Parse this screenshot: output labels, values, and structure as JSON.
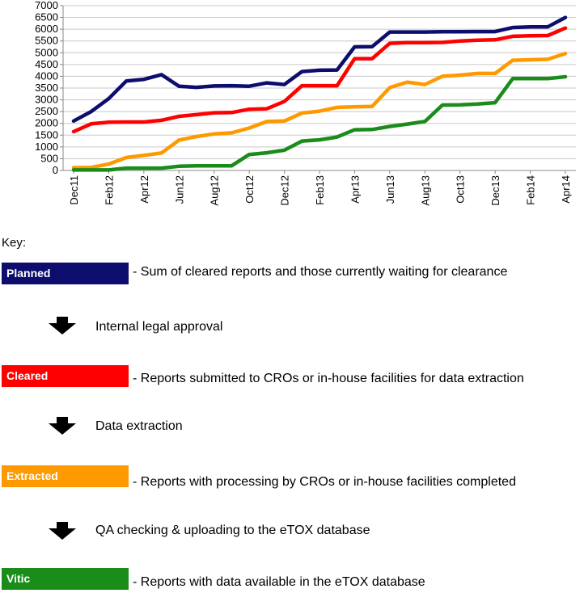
{
  "chart_data": {
    "type": "line",
    "categories": [
      "Dec11",
      "Jan12",
      "Feb12",
      "Mar12",
      "Apr12",
      "May12",
      "Jun12",
      "Jul12",
      "Aug12",
      "Sep12",
      "Oct12",
      "Nov12",
      "Dec12",
      "Jan13",
      "Feb13",
      "Mar13",
      "Apr13",
      "May13",
      "Jun13",
      "Jul13",
      "Aug13",
      "Sep13",
      "Oct13",
      "Nov13",
      "Dec13",
      "Jan14",
      "Feb14",
      "Mar14",
      "Apr14"
    ],
    "tick_labels": [
      "Dec11",
      "Feb12",
      "Apr12",
      "Jun12",
      "Aug12",
      "Oct12",
      "Dec12",
      "Feb13",
      "Apr13",
      "Jun13",
      "Aug13",
      "Oct13",
      "Dec13",
      "Feb14",
      "Apr14"
    ],
    "y_ticks": [
      0,
      500,
      1000,
      1500,
      2000,
      2500,
      3000,
      3500,
      4000,
      4500,
      5000,
      5500,
      6000,
      6500,
      7000
    ],
    "ylim": [
      0,
      7000
    ],
    "grid": true,
    "series": [
      {
        "name": "Planned",
        "color": "#0d0d6e",
        "values": [
          2100,
          2500,
          3050,
          3800,
          3870,
          4070,
          3580,
          3530,
          3590,
          3600,
          3580,
          3720,
          3650,
          4200,
          4260,
          4270,
          5250,
          5260,
          5880,
          5880,
          5880,
          5890,
          5890,
          5900,
          5900,
          6070,
          6100,
          6100,
          6500
        ]
      },
      {
        "name": "Cleared",
        "color": "#ff0000",
        "values": [
          1650,
          1980,
          2050,
          2060,
          2060,
          2130,
          2300,
          2370,
          2450,
          2460,
          2600,
          2620,
          2930,
          3600,
          3600,
          3600,
          4750,
          4750,
          5400,
          5430,
          5430,
          5440,
          5500,
          5530,
          5550,
          5700,
          5720,
          5730,
          6050
        ]
      },
      {
        "name": "Extracted",
        "color": "#ff9900",
        "values": [
          120,
          130,
          270,
          550,
          640,
          740,
          1290,
          1440,
          1550,
          1600,
          1800,
          2080,
          2100,
          2440,
          2520,
          2680,
          2700,
          2720,
          3520,
          3750,
          3650,
          4000,
          4050,
          4120,
          4120,
          4680,
          4700,
          4720,
          4970
        ]
      },
      {
        "name": "Vitic",
        "color": "#1a8c1a",
        "values": [
          20,
          20,
          20,
          100,
          100,
          100,
          180,
          200,
          200,
          200,
          680,
          750,
          860,
          1250,
          1300,
          1420,
          1730,
          1740,
          1870,
          1970,
          2080,
          2780,
          2790,
          2820,
          2880,
          3900,
          3900,
          3900,
          3980
        ]
      }
    ]
  },
  "key": {
    "title": "Key:",
    "items": [
      {
        "label": "Planned",
        "color": "#0d0d6e",
        "desc": "-  Sum of cleared reports and those currently waiting for clearance"
      },
      {
        "label": "Cleared",
        "color": "#ff0000",
        "desc": "-  Reports submitted to CROs or in-house facilities for data extraction"
      },
      {
        "label": "Extracted",
        "color": "#ff9900",
        "desc": "-  Reports with processing by CROs or in-house facilities completed"
      },
      {
        "label": "Vitic",
        "color": "#1a8c1a",
        "desc": "-  Reports with data available in the eTOX database"
      }
    ],
    "steps": [
      "Internal legal approval",
      "Data extraction",
      "QA checking & uploading to the eTOX database"
    ],
    "arrow_icon": "down-arrow-icon"
  }
}
